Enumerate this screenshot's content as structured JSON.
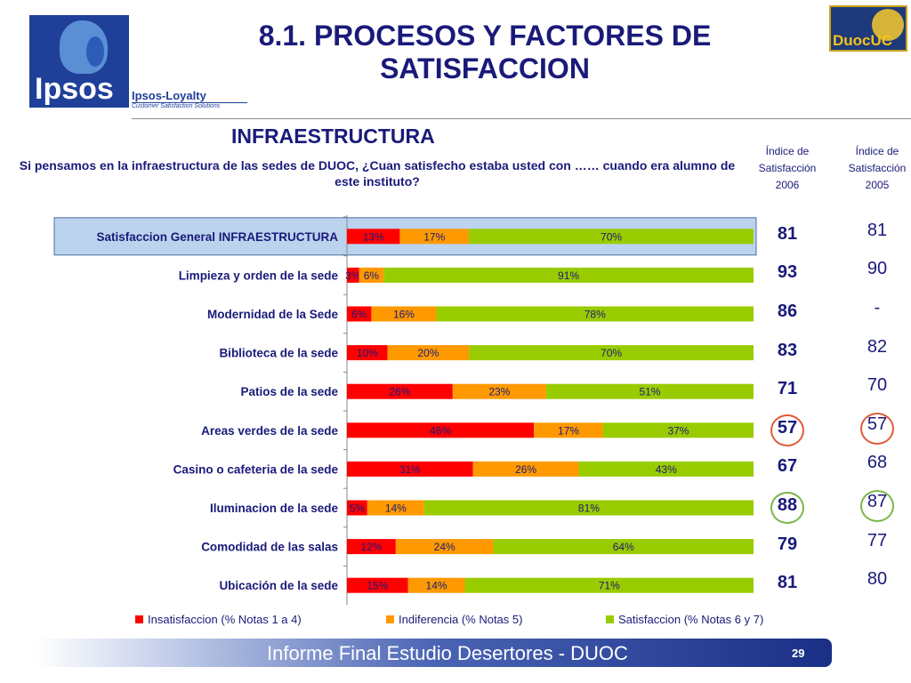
{
  "header": {
    "title": "8.1. PROCESOS Y FACTORES DE SATISFACCION",
    "subtitle": "INFRAESTRUCTURA",
    "question": "Si pensamos en la infraestructura de las sedes de DUOC, ¿Cuan satisfecho estaba usted con …… cuando era alumno de este instituto?"
  },
  "logos": {
    "ipsos": "Ipsos",
    "loyalty": "Ipsos-Loyalty",
    "loyalty_tagline": "Customer Satisfaction Solutions",
    "duoc": "DuocUC"
  },
  "index_headers": [
    {
      "line1": "Índice de",
      "line2": "Satisfacción",
      "year": "2006"
    },
    {
      "line1": "Índice de",
      "line2": "Satisfacción",
      "year": "2005"
    }
  ],
  "chart_data": {
    "type": "bar",
    "orientation": "horizontal",
    "stacked": true,
    "percent": true,
    "categories": [
      "Satisfaccion General INFRAESTRUCTURA",
      "Limpieza y orden de la sede",
      "Modernidad de la Sede",
      "Biblioteca de la sede",
      "Patios de la sede",
      "Areas verdes de la sede",
      "Casino o cafeteria de la sede",
      "Iluminacion de la sede",
      "Comodidad de las salas",
      "Ubicación de la sede"
    ],
    "series": [
      {
        "name": "Insatisfaccion (% Notas 1 a 4)",
        "color": "#ff0000",
        "values": [
          13,
          3,
          6,
          10,
          26,
          46,
          31,
          5,
          12,
          15
        ]
      },
      {
        "name": "Indiferencia (% Notas 5)",
        "color": "#ff9900",
        "values": [
          17,
          6,
          16,
          20,
          23,
          17,
          26,
          14,
          24,
          14
        ]
      },
      {
        "name": "Satisfaccion (% Notas 6 y 7)",
        "color": "#99cc00",
        "values": [
          70,
          91,
          78,
          70,
          51,
          37,
          43,
          81,
          64,
          71
        ]
      }
    ],
    "xlim": [
      0,
      100
    ],
    "legend_position": "bottom",
    "highlighted_category": "Satisfaccion General INFRAESTRUCTURA"
  },
  "index_2006": [
    "81",
    "93",
    "86",
    "83",
    "71",
    "57",
    "67",
    "88",
    "79",
    "81"
  ],
  "index_2005": [
    "81",
    "90",
    "-",
    "82",
    "70",
    "57",
    "68",
    "87",
    "77",
    "80"
  ],
  "circles": [
    {
      "row": 5,
      "color": "#e05a3a"
    },
    {
      "row": 7,
      "color": "#7ab648"
    }
  ],
  "footer": {
    "text": "Informe Final Estudio Desertores - DUOC",
    "page": "29"
  }
}
